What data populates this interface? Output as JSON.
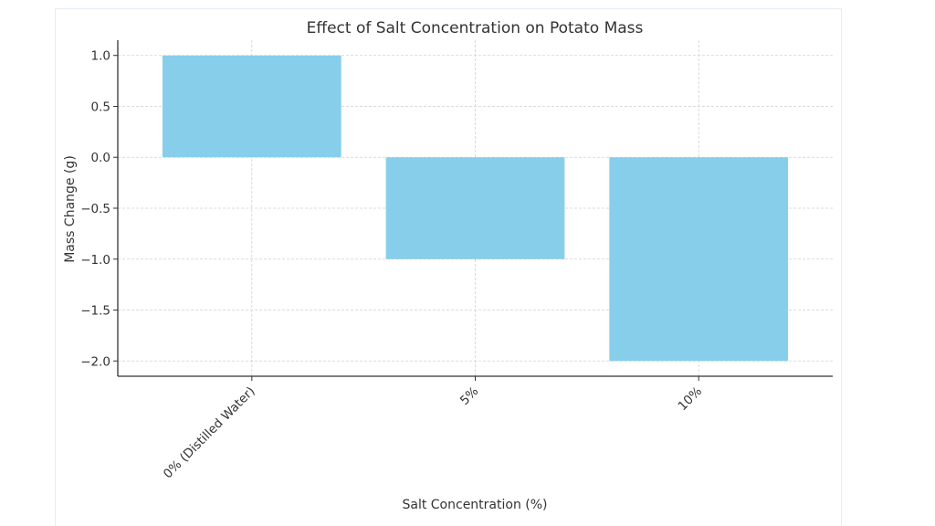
{
  "chart_data": {
    "type": "bar",
    "title": "Effect of Salt Concentration on Potato Mass",
    "xlabel": "Salt Concentration (%)",
    "ylabel": "Mass Change (g)",
    "categories": [
      "0% (Distilled Water)",
      "5%",
      "10%"
    ],
    "values": [
      1.0,
      -1.0,
      -2.0
    ],
    "ylim": [
      -2.15,
      1.15
    ],
    "yticks": [
      1.0,
      0.5,
      0.0,
      -0.5,
      -1.0,
      -1.5,
      -2.0
    ],
    "ytick_labels": [
      "1.0",
      "0.5",
      "0.0",
      "−0.5",
      "−1.0",
      "−1.5",
      "−2.0"
    ],
    "grid": true,
    "bar_color": "#87ceeb"
  }
}
